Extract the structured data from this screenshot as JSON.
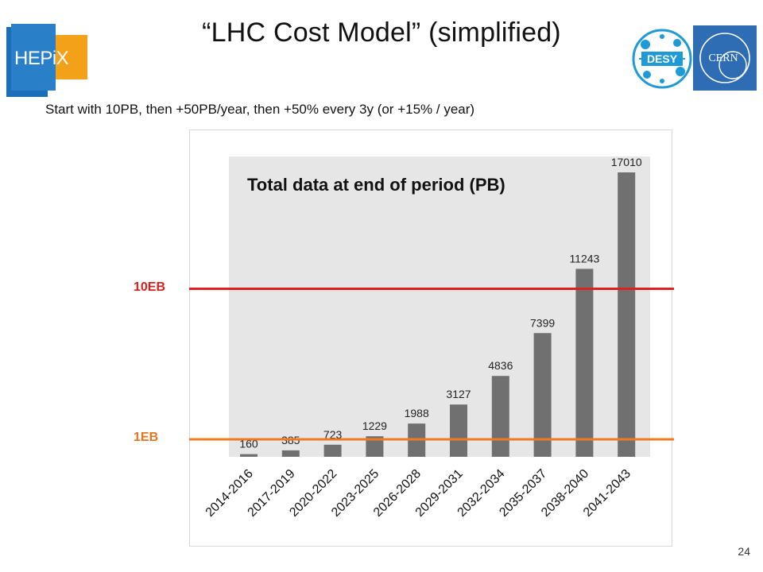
{
  "slide": {
    "title": "“LHC Cost Model” (simplified)",
    "subtitle": "Start with 10PB, then +50PB/year, then +50% every 3y (or +15% / year)",
    "page_number": "24",
    "hepix_logo_text": "HEPiX",
    "desy_logo_text": "DESY",
    "cern_logo_text": "CERN"
  },
  "colors": {
    "bar": "#707070",
    "plot_bg": "#e6e6e6",
    "line_10eb": "#e02020",
    "line_1eb": "#f07a22",
    "label_10eb": "#d42020",
    "label_1eb": "#e8731f"
  },
  "chart_data": {
    "type": "bar",
    "title": "Total data at end of period (PB)",
    "categories": [
      "2014-2016",
      "2017-2019",
      "2020-2022",
      "2023-2025",
      "2026-2028",
      "2029-2031",
      "2032-2034",
      "2035-2037",
      "2038-2040",
      "2041-2043"
    ],
    "values": [
      160,
      385,
      723,
      1229,
      1988,
      3127,
      4836,
      7399,
      11243,
      17010
    ],
    "data_labels": [
      "160",
      "385",
      "723",
      "1229",
      "1988",
      "3127",
      "4836",
      "7399",
      "11243",
      "17010"
    ],
    "ylim": [
      0,
      17010
    ],
    "grid": false,
    "legend": "none",
    "reference_lines": [
      {
        "label": "10EB",
        "value": 10000
      },
      {
        "label": "1EB",
        "value": 1000
      }
    ]
  }
}
